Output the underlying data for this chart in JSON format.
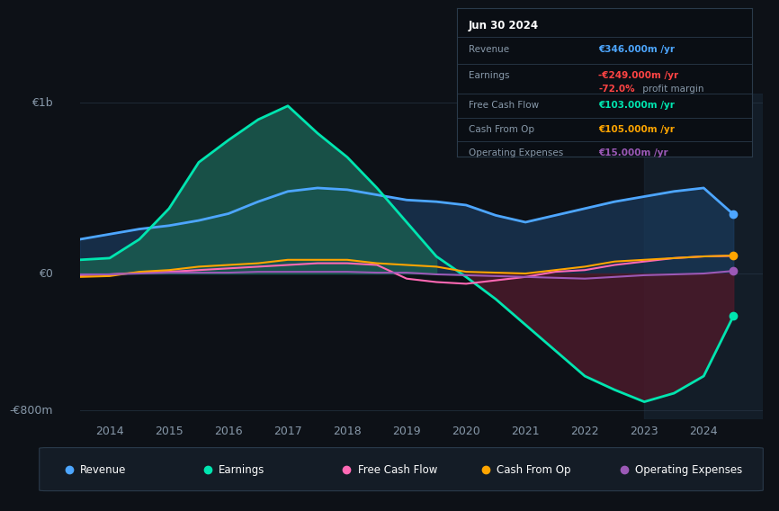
{
  "background_color": "#0d1117",
  "title": "Jun 30 2024",
  "ylabel_1b": "€1b",
  "ylabel_0": "€0",
  "ylabel_neg800": "-€800m",
  "xlim": [
    2013.5,
    2025.0
  ],
  "ylim": [
    -850,
    1050
  ],
  "y_zero": 0,
  "y_1b": 1000,
  "y_neg800": -800,
  "years": [
    2013.5,
    2014.0,
    2014.5,
    2015.0,
    2015.5,
    2016.0,
    2016.5,
    2017.0,
    2017.5,
    2018.0,
    2018.5,
    2019.0,
    2019.5,
    2020.0,
    2020.5,
    2021.0,
    2021.5,
    2022.0,
    2022.5,
    2023.0,
    2023.5,
    2024.0,
    2024.5
  ],
  "revenue": [
    200,
    230,
    260,
    280,
    310,
    350,
    420,
    480,
    500,
    490,
    460,
    430,
    420,
    400,
    340,
    300,
    340,
    380,
    420,
    450,
    480,
    500,
    346
  ],
  "earnings": [
    80,
    90,
    200,
    380,
    650,
    780,
    900,
    980,
    820,
    680,
    500,
    300,
    100,
    -20,
    -150,
    -300,
    -450,
    -600,
    -680,
    -750,
    -700,
    -600,
    -249
  ],
  "free_cash_flow": [
    -10,
    -5,
    5,
    10,
    20,
    30,
    40,
    50,
    60,
    60,
    50,
    -30,
    -50,
    -60,
    -40,
    -20,
    10,
    20,
    50,
    70,
    90,
    100,
    103
  ],
  "cash_from_op": [
    -20,
    -15,
    10,
    20,
    40,
    50,
    60,
    80,
    80,
    80,
    60,
    50,
    40,
    10,
    5,
    0,
    20,
    40,
    70,
    80,
    90,
    100,
    105
  ],
  "operating_expenses": [
    -5,
    -5,
    0,
    5,
    5,
    5,
    10,
    10,
    10,
    10,
    5,
    5,
    -5,
    -10,
    -15,
    -20,
    -25,
    -30,
    -20,
    -10,
    -5,
    0,
    15
  ],
  "revenue_color": "#4da6ff",
  "earnings_color": "#00e5b0",
  "earnings_fill_pos": "#1a5c50",
  "earnings_fill_neg": "#4a1a2a",
  "revenue_fill": "#1a3a5c",
  "free_cash_flow_color": "#ff69b4",
  "cash_from_op_color": "#ffa500",
  "operating_expenses_color": "#9b59b6",
  "grid_color": "#2a3a4a",
  "text_color": "#8899aa",
  "highlight_color_blue": "#4da6ff",
  "highlight_color_green": "#00e5b0",
  "highlight_color_red": "#ff4444",
  "highlight_color_orange": "#ffa500",
  "highlight_color_purple": "#9b59b6",
  "info_rows": [
    {
      "label": "Revenue",
      "value": "€346.000m /yr",
      "color_key": "highlight_color_blue",
      "margin": null
    },
    {
      "label": "Earnings",
      "value": "-€249.000m /yr",
      "color_key": "highlight_color_red",
      "margin": "-72.0%"
    },
    {
      "label": "Free Cash Flow",
      "value": "€103.000m /yr",
      "color_key": "highlight_color_green",
      "margin": null
    },
    {
      "label": "Cash From Op",
      "value": "€105.000m /yr",
      "color_key": "highlight_color_orange",
      "margin": null
    },
    {
      "label": "Operating Expenses",
      "value": "€15.000m /yr",
      "color_key": "highlight_color_purple",
      "margin": null
    }
  ],
  "legend_items": [
    {
      "label": "Revenue",
      "color_key": "revenue_color"
    },
    {
      "label": "Earnings",
      "color_key": "earnings_color"
    },
    {
      "label": "Free Cash Flow",
      "color_key": "free_cash_flow_color"
    },
    {
      "label": "Cash From Op",
      "color_key": "cash_from_op_color"
    },
    {
      "label": "Operating Expenses",
      "color_key": "operating_expenses_color"
    }
  ]
}
